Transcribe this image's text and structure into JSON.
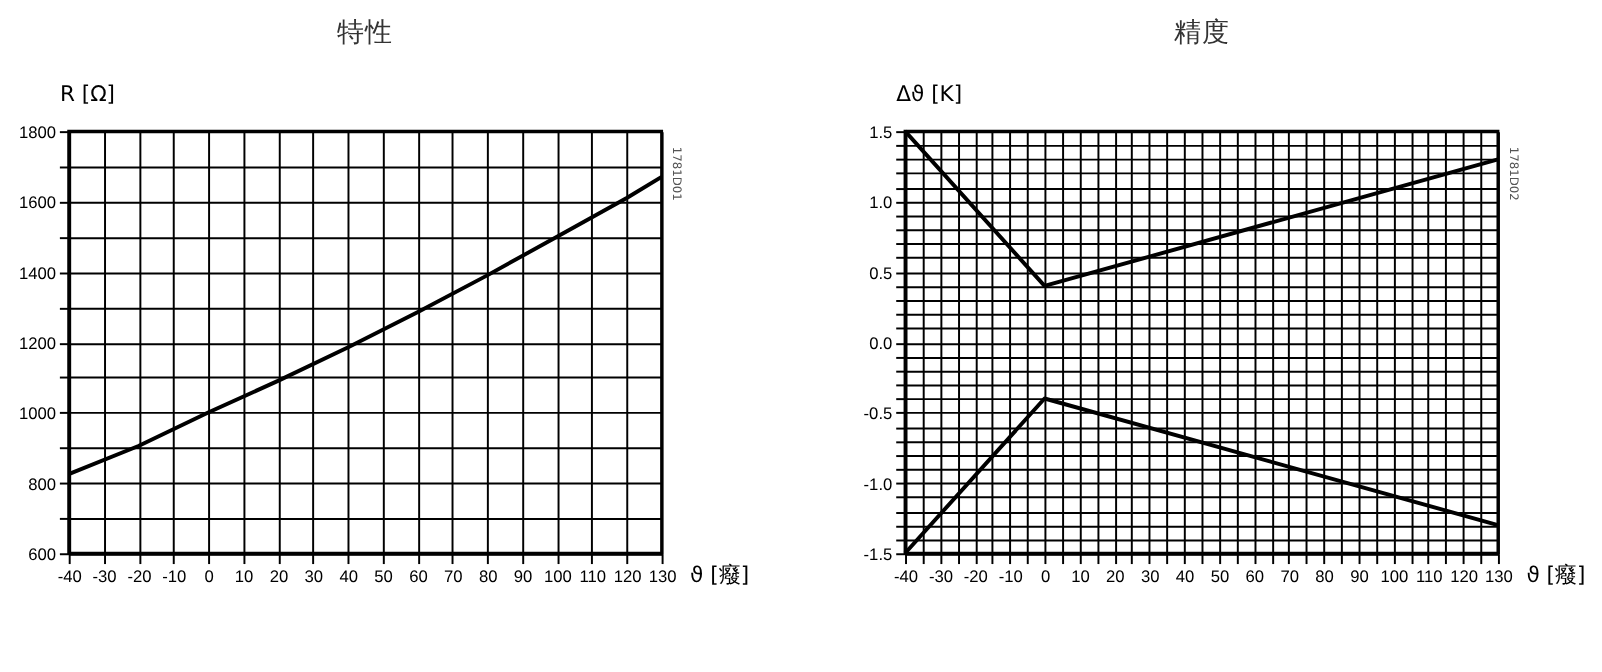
{
  "chart_data": [
    {
      "type": "line",
      "title": "特性",
      "ylabel": "R [Ω]",
      "xlabel": "ϑ [癈]",
      "grid": true,
      "marker": "none",
      "line_style": "solid",
      "x": [
        -40,
        -20,
        0,
        20,
        40,
        60,
        80,
        100,
        120,
        130
      ],
      "series": [
        {
          "color": "#000000",
          "values": [
            825,
            905,
            1000,
            1090,
            1185,
            1285,
            1390,
            1500,
            1610,
            1670
          ]
        }
      ],
      "xlim": [
        -40,
        130
      ],
      "ylim": [
        600,
        1800
      ],
      "xticks": [
        -40,
        -30,
        -20,
        -10,
        0,
        10,
        20,
        30,
        40,
        50,
        60,
        70,
        80,
        90,
        100,
        110,
        120,
        130
      ],
      "yticks": [
        600,
        {
          "value": 700,
          "label": null
        },
        800,
        {
          "value": 900,
          "label": null
        },
        1000,
        {
          "value": 1100,
          "label": null
        },
        1200,
        {
          "value": 1300,
          "label": null
        },
        1400,
        {
          "value": 1500,
          "label": null
        },
        1600,
        {
          "value": 1700,
          "label": null
        },
        1800
      ],
      "annotations": [
        "1781D01"
      ]
    },
    {
      "type": "line",
      "title": "精度",
      "ylabel": "Δϑ [K]",
      "xlabel": "ϑ [癈]",
      "grid": true,
      "marker": "none",
      "line_style": "solid",
      "x": [
        -40,
        0,
        130
      ],
      "series": [
        {
          "color": "#000000",
          "values": [
            1.5,
            0.4,
            1.3
          ]
        },
        {
          "color": "#000000",
          "values": [
            -1.5,
            -0.4,
            -1.3
          ]
        }
      ],
      "xlim": [
        -40,
        130
      ],
      "ylim": [
        -1.5,
        1.5
      ],
      "xticks": [
        -40,
        {
          "value": -35,
          "label": null
        },
        -30,
        {
          "value": -25,
          "label": null
        },
        -20,
        {
          "value": -15,
          "label": null
        },
        -10,
        {
          "value": -5,
          "label": null
        },
        0,
        {
          "value": 5,
          "label": null
        },
        10,
        {
          "value": 15,
          "label": null
        },
        20,
        {
          "value": 25,
          "label": null
        },
        30,
        {
          "value": 35,
          "label": null
        },
        40,
        {
          "value": 45,
          "label": null
        },
        50,
        {
          "value": 55,
          "label": null
        },
        60,
        {
          "value": 65,
          "label": null
        },
        70,
        {
          "value": 75,
          "label": null
        },
        80,
        {
          "value": 85,
          "label": null
        },
        90,
        {
          "value": 95,
          "label": null
        },
        100,
        {
          "value": 105,
          "label": null
        },
        110,
        {
          "value": 115,
          "label": null
        },
        120,
        {
          "value": 125,
          "label": null
        },
        130
      ],
      "yticks": [
        {
          "value": -1.5,
          "label": "-1.5"
        },
        {
          "value": -1.4,
          "label": null
        },
        {
          "value": -1.3,
          "label": null
        },
        {
          "value": -1.2,
          "label": null
        },
        {
          "value": -1.1,
          "label": null
        },
        {
          "value": -1.0,
          "label": "-1.0"
        },
        {
          "value": -0.9,
          "label": null
        },
        {
          "value": -0.8,
          "label": null
        },
        {
          "value": -0.7,
          "label": null
        },
        {
          "value": -0.6,
          "label": null
        },
        {
          "value": -0.5,
          "label": "-0.5"
        },
        {
          "value": -0.4,
          "label": null
        },
        {
          "value": -0.3,
          "label": null
        },
        {
          "value": -0.2,
          "label": null
        },
        {
          "value": -0.1,
          "label": null
        },
        {
          "value": 0,
          "label": "0.0"
        },
        {
          "value": 0.1,
          "label": null
        },
        {
          "value": 0.2,
          "label": null
        },
        {
          "value": 0.3,
          "label": null
        },
        {
          "value": 0.4,
          "label": null
        },
        {
          "value": 0.5,
          "label": "0.5"
        },
        {
          "value": 0.6,
          "label": null
        },
        {
          "value": 0.7,
          "label": null
        },
        {
          "value": 0.8,
          "label": null
        },
        {
          "value": 0.9,
          "label": null
        },
        {
          "value": 1.0,
          "label": "1.0"
        },
        {
          "value": 1.1,
          "label": null
        },
        {
          "value": 1.2,
          "label": null
        },
        {
          "value": 1.3,
          "label": null
        },
        {
          "value": 1.4,
          "label": null
        },
        {
          "value": 1.5,
          "label": "1.5"
        }
      ],
      "annotations": [
        "1781D02"
      ]
    }
  ]
}
